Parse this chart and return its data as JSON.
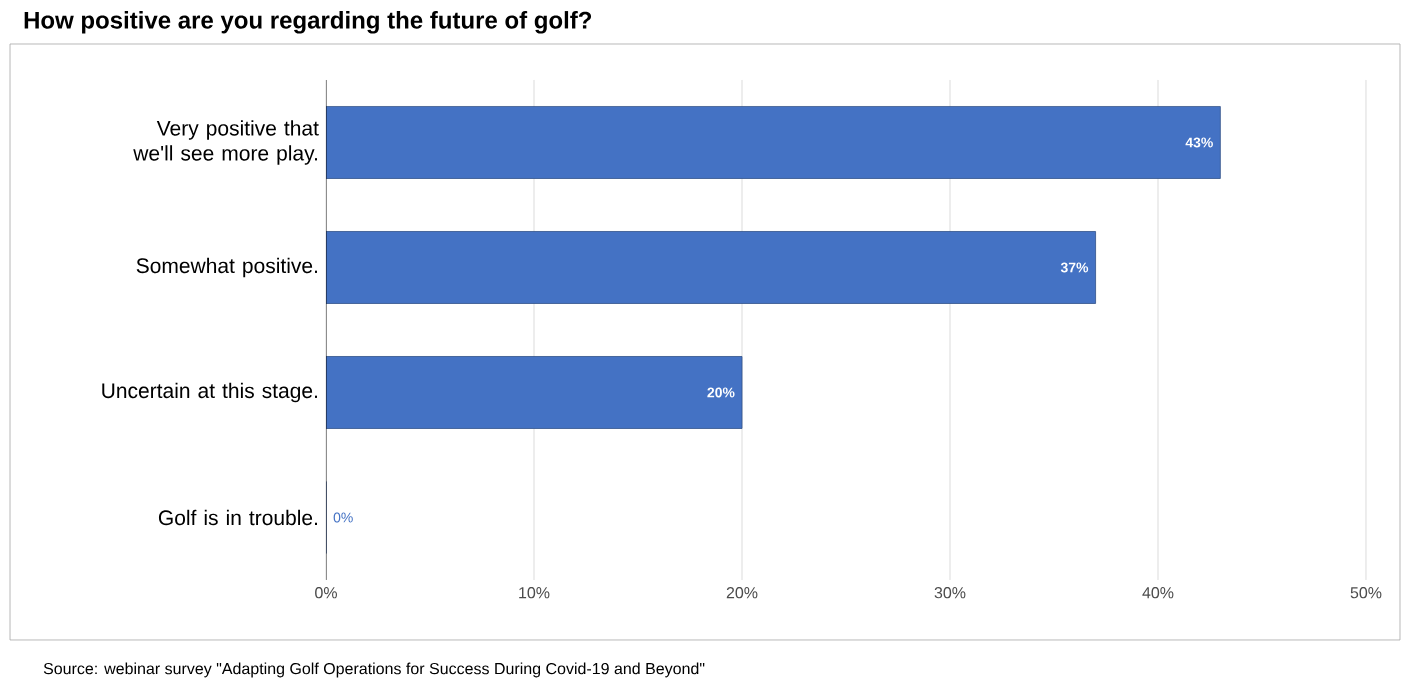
{
  "chart_data": {
    "type": "bar",
    "orientation": "horizontal",
    "title": "How positive are you regarding the future of golf?",
    "categories": [
      "Very positive that we'll see more play.",
      "Somewhat positive.",
      "Uncertain at this stage.",
      "Golf is in trouble."
    ],
    "values": [
      43,
      37,
      20,
      0
    ],
    "color": "#4472c4",
    "value_labels": [
      "43%",
      "37%",
      "20%",
      "0%"
    ],
    "xlim": [
      0,
      50
    ],
    "xticks": [
      {
        "value": 0,
        "label": "0%"
      },
      {
        "value": 10,
        "label": "10%"
      },
      {
        "value": 20,
        "label": "20%"
      },
      {
        "value": 30,
        "label": "30%"
      },
      {
        "value": 40,
        "label": "40%"
      },
      {
        "value": 50,
        "label": "50%"
      }
    ],
    "grid": "x",
    "annotations": [
      "Source: webinar survey \"Adapting Golf Operations for Success During Covid-19 and Beyond\""
    ]
  }
}
